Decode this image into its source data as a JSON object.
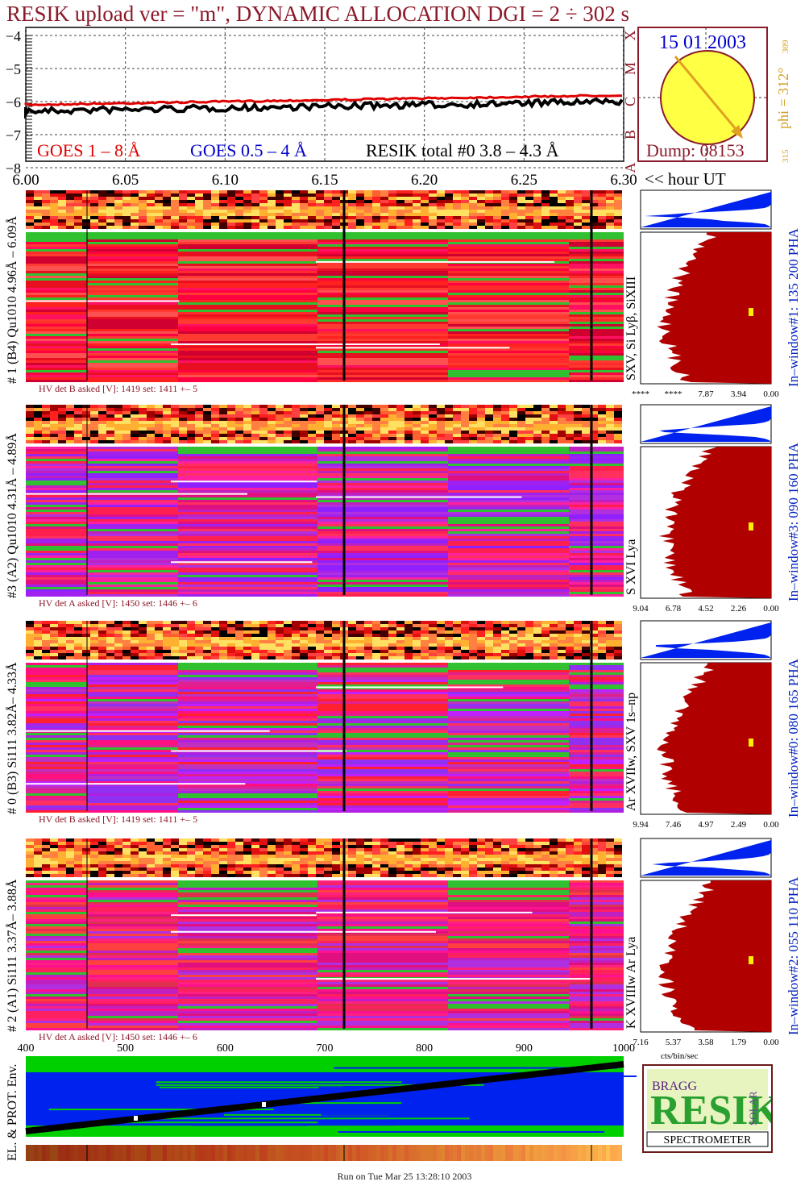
{
  "title": "RESIK upload ver = \"m\", DYNAMIC ALLOCATION  DGI =   2 ÷ 302 s",
  "date": "15 01 2003",
  "dump": "Dump: 08153",
  "phi_label": "phi = 312°",
  "phi_sup": "309",
  "phi_low": "315",
  "goes": {
    "legend_red": "GOES 1 – 8 Å",
    "legend_blue": "GOES 0.5 – 4 Å",
    "legend_black": "RESIK total #0  3.8 – 4.3 Å",
    "y_ticks": [
      "−4",
      "−5",
      "−6",
      "−7",
      "−8"
    ],
    "class_letters": [
      "X",
      "M",
      "C",
      "B",
      "A"
    ],
    "x_ticks": [
      "6.00",
      "6.05",
      "6.10",
      "6.15",
      "6.20",
      "6.25",
      "6.30"
    ],
    "x_unit": "<< hour UT"
  },
  "panels": [
    {
      "left_label": "# 1 (B4) Qu1010 4.96Å – 6.09Å",
      "line_label": "SXV, Si Lyβ, SiXIII",
      "window_label": "In–window#1:  135 200 PHA",
      "hv_text": "HV det B asked [V]:  1419 set:  1411  +–   5",
      "axis_ticks": [
        "****",
        "****",
        "7.87",
        "3.94",
        "0.00"
      ]
    },
    {
      "left_label": "#3 (A2) Qu1010  4.31Å – 4.89Å",
      "line_label": "S XVI Lya",
      "window_label": "In–window#3:  090 160 PHA",
      "hv_text": "HV det A asked [V]:  1450 set:  1446  +–   6",
      "axis_ticks": [
        "9.04",
        "6.78",
        "4.52",
        "2.26",
        "0.00"
      ]
    },
    {
      "left_label": "# 0 (B3) Si111  3.82Å– 4.33Å",
      "line_label": "Ar XVIIw,  SXV 1s–np",
      "window_label": "In–window#0:  080 165 PHA",
      "hv_text": "HV det B asked [V]:  1419 set:  1411  +–   5",
      "axis_ticks": [
        "9.94",
        "7.46",
        "4.97",
        "2.49",
        "0.00"
      ]
    },
    {
      "left_label": "# 2 (A1) Si111  3.37Å– 3.88Å",
      "line_label": "K XVIIIw  Ar Lya",
      "window_label": "In–window#2:  055 110 PHA",
      "hv_text": "HV det A asked [V]:  1450 set:  1446  +–   6",
      "axis_ticks": [
        "7.16",
        "5.37",
        "3.58",
        "1.79",
        "0.00"
      ]
    }
  ],
  "bottom": {
    "x_ticks": [
      "400",
      "500",
      "600",
      "700",
      "800",
      "900",
      "1000"
    ],
    "unit": "cts/bin/sec",
    "env_label": "EL. & PROT. Env."
  },
  "logo": {
    "letters": "RESIK",
    "bragg": "BRAGG",
    "solar": "SOLAR",
    "caption": "SPECTROMETER"
  },
  "footer": "Run on Tue Mar 25 13:28:10 2003",
  "colors": {
    "title": "#8b1a2a",
    "dark_red": "#a00000",
    "blue": "#0000cc",
    "window_text": "#0020c0",
    "gold": "#d4a020"
  }
}
